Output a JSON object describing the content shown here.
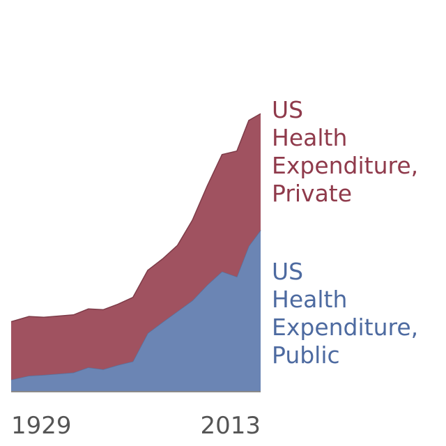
{
  "chart_data": {
    "type": "area",
    "stacked": true,
    "x": [
      1929,
      1935,
      1940,
      1950,
      1955,
      1960,
      1965,
      1970,
      1975,
      1980,
      1985,
      1990,
      1995,
      2000,
      2005,
      2009,
      2013
    ],
    "series": [
      {
        "name": "US Health Expenditure, Public",
        "label_lines": [
          "US",
          "Health",
          "Expenditure,",
          "Public"
        ],
        "color": "#6b85b4",
        "values": [
          3,
          4,
          4.2,
          4.8,
          6.1,
          5.6,
          6.7,
          7.6,
          14.7,
          17.5,
          20.2,
          22.9,
          26.8,
          30.2,
          28.9,
          36.6,
          40.6
        ]
      },
      {
        "name": "US Health Expenditure, Private",
        "label_lines": [
          "US",
          "Health",
          "Expenditure,",
          "Private"
        ],
        "color": "#a05260",
        "values": [
          14.6,
          14.9,
          14.5,
          14.5,
          14.7,
          15,
          15.3,
          16.1,
          15.8,
          15.9,
          16.6,
          20.2,
          24.9,
          29.4,
          31.6,
          31.6,
          29.3
        ]
      }
    ],
    "tick_labels": [
      "1929",
      "2013"
    ],
    "xlim": [
      1929,
      2013
    ],
    "ylim": [
      0,
      82
    ],
    "grid": false,
    "legend": "right"
  }
}
